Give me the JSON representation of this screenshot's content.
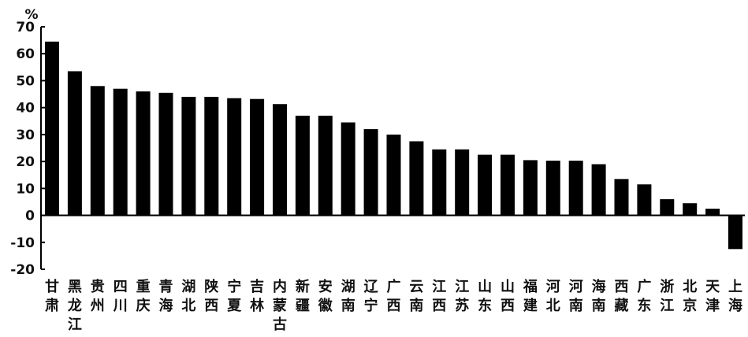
{
  "chart_data": {
    "type": "bar",
    "title": "",
    "xlabel": "",
    "ylabel": "%",
    "ylim": [
      -20,
      70
    ],
    "yticks": [
      70,
      60,
      50,
      40,
      30,
      20,
      10,
      0,
      -10,
      -20
    ],
    "ytick_labels": [
      "70",
      "60",
      "50",
      "40",
      "30",
      "20",
      "10",
      "0",
      "-10",
      "-20"
    ],
    "grid": false,
    "legend": "none",
    "bar_color": "#000000",
    "categories": [
      "甘肃",
      "黑龙江",
      "贵州",
      "四川",
      "重庆",
      "青海",
      "湖北",
      "陕西",
      "宁夏",
      "吉林",
      "内蒙古",
      "新疆",
      "安徽",
      "湖南",
      "辽宁",
      "广西",
      "云南",
      "江西",
      "江苏",
      "山东",
      "山西",
      "福建",
      "河北",
      "河南",
      "海南",
      "西藏",
      "广东",
      "浙江",
      "北京",
      "天津",
      "上海"
    ],
    "values": [
      64.5,
      53.5,
      48,
      47,
      46,
      45.5,
      44,
      44,
      43.5,
      43.2,
      41.3,
      37,
      37,
      34.5,
      32,
      30,
      27.5,
      24.5,
      24.5,
      22.5,
      22.5,
      20.5,
      20.3,
      20.3,
      19,
      13.5,
      11.5,
      6,
      4.5,
      2.5,
      -12.5
    ]
  }
}
